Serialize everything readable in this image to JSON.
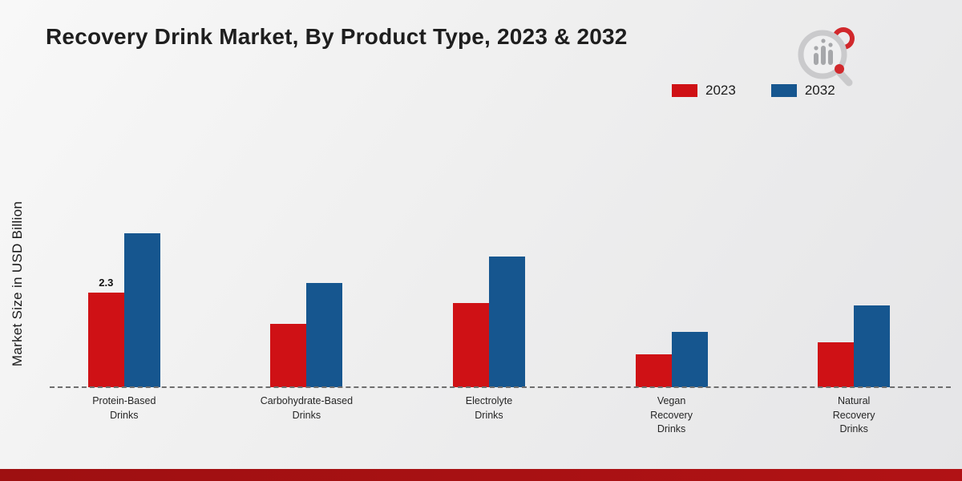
{
  "legend": {
    "items": [
      {
        "label": "2023",
        "color": "#cf1115"
      },
      {
        "label": "2032",
        "color": "#16568f"
      }
    ]
  },
  "chart_data": {
    "type": "bar",
    "title": "Recovery Drink Market, By Product Type, 2023 & 2032",
    "xlabel": "",
    "ylabel": "Market Size in USD Billion",
    "ylim": [
      0,
      4.6
    ],
    "grid": false,
    "legend_position": "top-right",
    "baseline_style": "dashed",
    "categories": [
      "Protein-Based Drinks",
      "Carbohydrate-Based Drinks",
      "Electrolyte Drinks",
      "Vegan Recovery Drinks",
      "Natural Recovery Drinks"
    ],
    "category_lines": [
      [
        "Protein-Based",
        "Drinks"
      ],
      [
        "Carbohydrate-Based",
        "Drinks"
      ],
      [
        "Electrolyte",
        "Drinks"
      ],
      [
        "Vegan",
        "Recovery",
        "Drinks"
      ],
      [
        "Natural",
        "Recovery",
        "Drinks"
      ]
    ],
    "series": [
      {
        "name": "2023",
        "color": "#cf1115",
        "values": [
          2.3,
          1.55,
          2.05,
          0.8,
          1.1
        ]
      },
      {
        "name": "2032",
        "color": "#16568f",
        "values": [
          3.75,
          2.55,
          3.2,
          1.35,
          2.0
        ]
      }
    ],
    "bar_labels": [
      {
        "series_index": 0,
        "category_index": 0,
        "text": "2.3"
      }
    ]
  }
}
